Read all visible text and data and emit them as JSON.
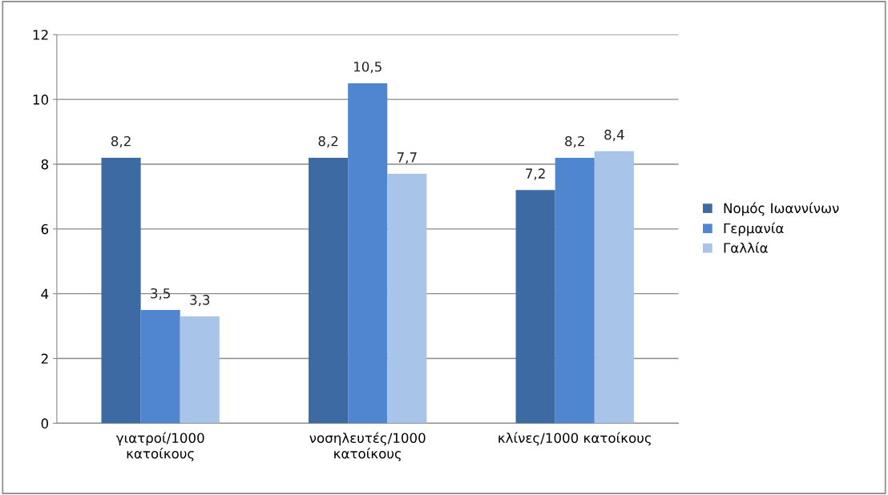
{
  "chart_data": {
    "type": "bar",
    "categories": [
      "γιατροί/1000\nκατοίκους",
      "νοσηλευτές/1000\nκατοίκους",
      "κλίνες/1000 κατοίκους"
    ],
    "series": [
      {
        "name": "Νομός Ιωαννίνων",
        "color": "#3d6aa3",
        "values": [
          8.2,
          8.2,
          7.2
        ],
        "value_labels": [
          "8,2",
          "8,2",
          "7,2"
        ]
      },
      {
        "name": "Γερμανία",
        "color": "#4f86cf",
        "values": [
          3.5,
          10.5,
          8.2
        ],
        "value_labels": [
          "3,5",
          "10,5",
          "8,2"
        ]
      },
      {
        "name": "Γαλλία",
        "color": "#a8c4e8",
        "values": [
          3.3,
          7.7,
          8.4
        ],
        "value_labels": [
          "3,3",
          "7,7",
          "8,4"
        ]
      }
    ],
    "ylim": [
      0,
      12
    ],
    "yticks": [
      0,
      2,
      4,
      6,
      8,
      10,
      12
    ],
    "grid": "y",
    "legend": "right"
  }
}
